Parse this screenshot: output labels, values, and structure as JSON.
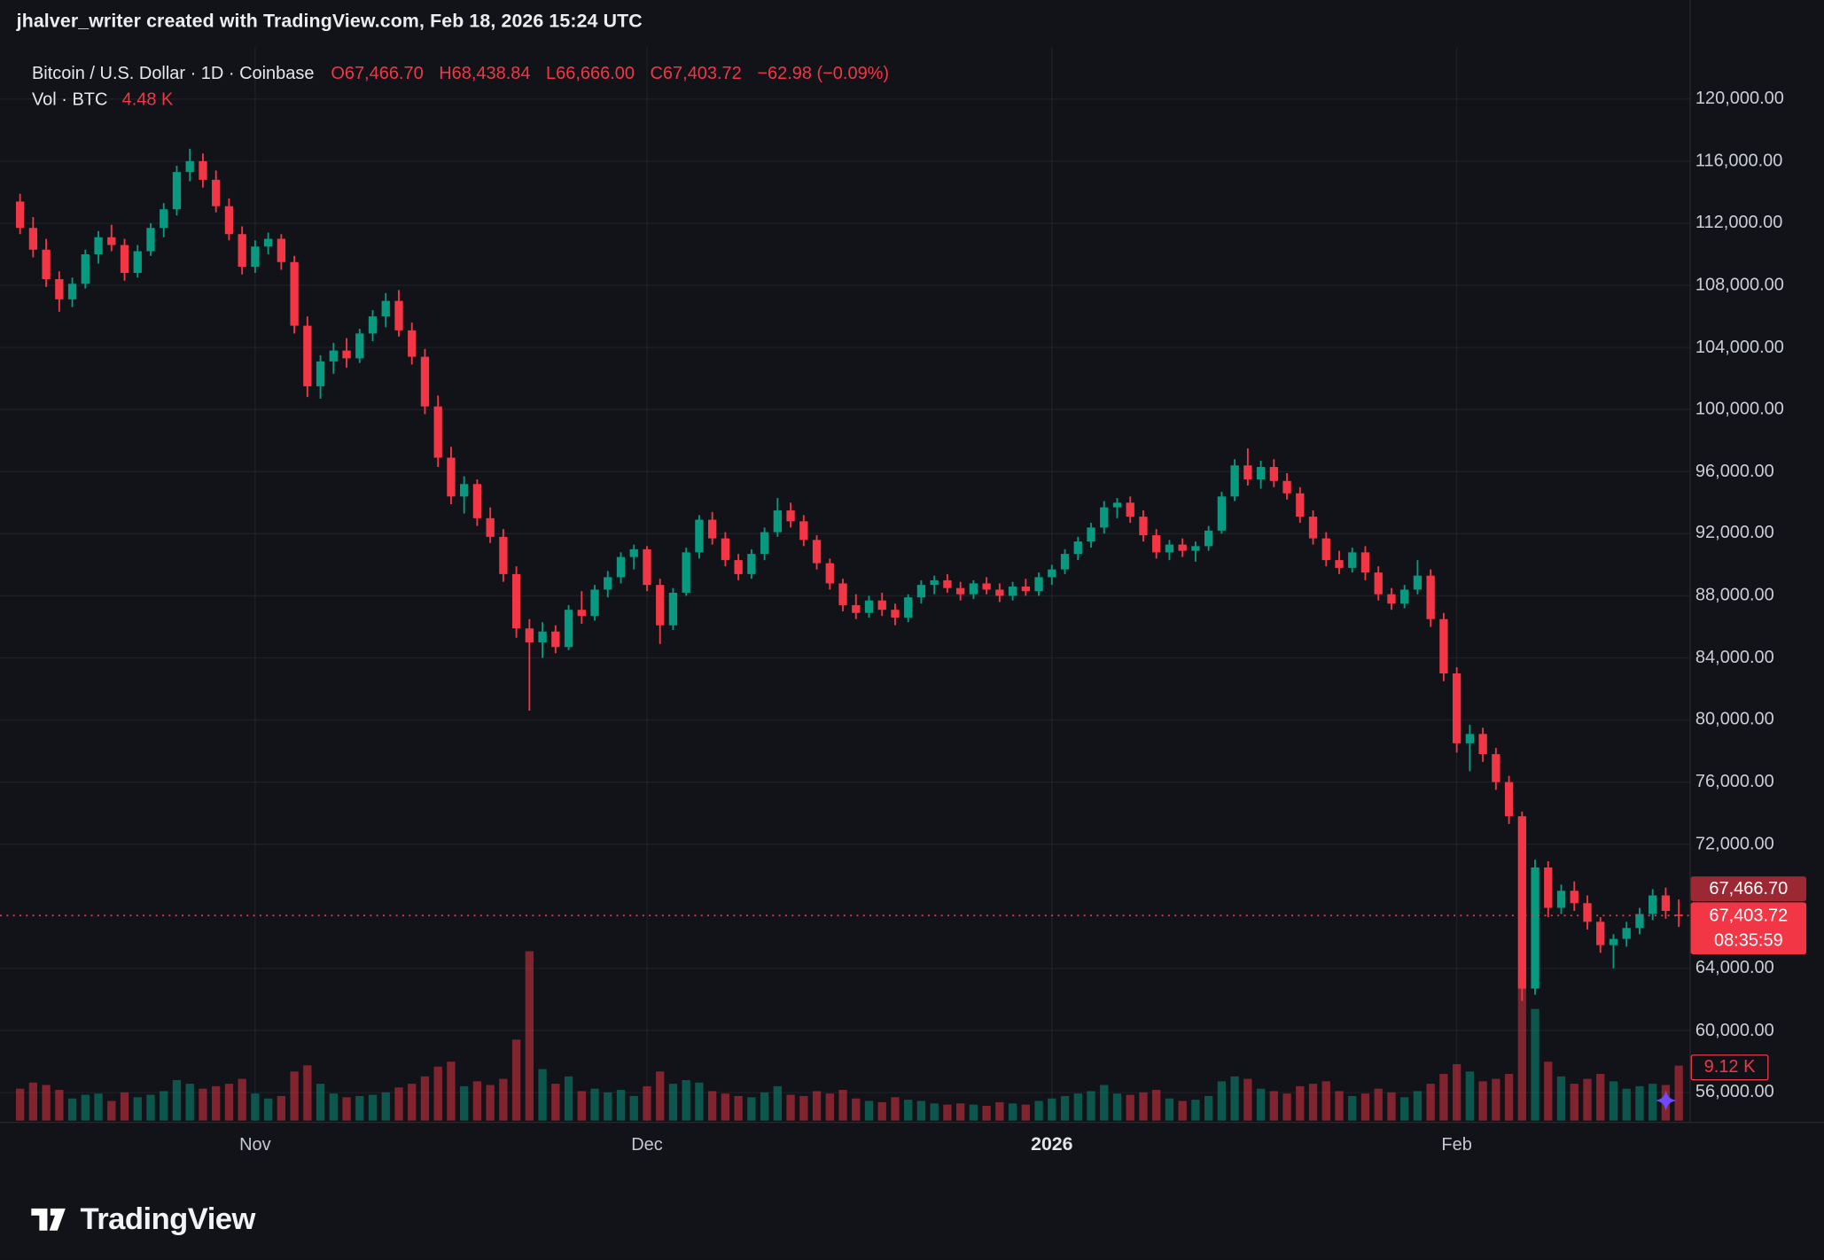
{
  "attribution": {
    "text": "jhalver_writer created with TradingView.com, Feb 18, 2026 15:24 UTC"
  },
  "legend": {
    "instrument": "Bitcoin / U.S. Dollar · 1D · Coinbase",
    "open": "O67,466.70",
    "high": "H68,438.84",
    "low": "L66,666.00",
    "close": "C67,403.72",
    "change": "−62.98 (−0.09%)",
    "volume_label": "Vol · BTC",
    "volume_value": "4.48 K"
  },
  "price_scale": {
    "open_label": "67,466.70",
    "close_label": "67,403.72",
    "countdown": "08:35:59",
    "volume_tag": "9.12 K"
  },
  "footer": {
    "brand": "TradingView"
  },
  "colors": {
    "up": "#089981",
    "down": "#f23645",
    "volume_up": "rgba(8,153,129,0.5)",
    "volume_down": "rgba(242,54,69,0.5)",
    "price_line": "#f23645",
    "grid": "rgba(255,255,255,0.055)",
    "marker": "#6e4bfa"
  },
  "chart_data": {
    "type": "candlestick",
    "title": "Bitcoin / U.S. Dollar · 1D · Coinbase",
    "interval": "1D",
    "legend_last": {
      "open": 67466.7,
      "high": 68438.84,
      "low": 66666.0,
      "close": 67403.72,
      "change": -62.98,
      "change_pct": -0.09,
      "volume_btc_k": 4.48
    },
    "current_price": 67403.72,
    "y_axis": {
      "min": 56000,
      "max": 120000,
      "tick_step": 4000,
      "ticks": [
        {
          "value": 120000,
          "label": "120,000.00"
        },
        {
          "value": 116000,
          "label": "116,000.00"
        },
        {
          "value": 112000,
          "label": "112,000.00"
        },
        {
          "value": 108000,
          "label": "108,000.00"
        },
        {
          "value": 104000,
          "label": "104,000.00"
        },
        {
          "value": 100000,
          "label": "100,000.00"
        },
        {
          "value": 96000,
          "label": "96,000.00"
        },
        {
          "value": 92000,
          "label": "92,000.00"
        },
        {
          "value": 88000,
          "label": "88,000.00"
        },
        {
          "value": 84000,
          "label": "84,000.00"
        },
        {
          "value": 80000,
          "label": "80,000.00"
        },
        {
          "value": 76000,
          "label": "76,000.00"
        },
        {
          "value": 72000,
          "label": "72,000.00"
        },
        {
          "value": 64000,
          "label": "64,000.00"
        },
        {
          "value": 60000,
          "label": "60,000.00"
        },
        {
          "value": 56000,
          "label": "56,000.00"
        }
      ]
    },
    "x_axis": {
      "labels": [
        {
          "text": "Nov",
          "day": 18,
          "bold": false
        },
        {
          "text": "Dec",
          "day": 48,
          "bold": false
        },
        {
          "text": "2026",
          "day": 79,
          "bold": true
        },
        {
          "text": "Feb",
          "day": 110,
          "bold": false
        }
      ]
    },
    "candles_format": [
      "open",
      "high",
      "low",
      "close",
      "volume_k"
    ],
    "candles": [
      [
        113400,
        113900,
        111300,
        111700,
        2.6
      ],
      [
        111700,
        112400,
        109800,
        110300,
        3.1
      ],
      [
        110300,
        111000,
        107900,
        108400,
        2.9
      ],
      [
        108400,
        108900,
        106300,
        107100,
        2.5
      ],
      [
        107100,
        108500,
        106600,
        108100,
        1.8
      ],
      [
        108100,
        110300,
        107800,
        110000,
        2.1
      ],
      [
        110000,
        111500,
        109400,
        111100,
        2.2
      ],
      [
        111100,
        111900,
        110200,
        110600,
        1.6
      ],
      [
        110600,
        111000,
        108300,
        108800,
        2.3
      ],
      [
        108800,
        110600,
        108500,
        110200,
        1.9
      ],
      [
        110200,
        112000,
        109900,
        111700,
        2.1
      ],
      [
        111700,
        113300,
        111100,
        112900,
        2.4
      ],
      [
        112900,
        115700,
        112500,
        115300,
        3.3
      ],
      [
        115300,
        116800,
        114700,
        116000,
        3.0
      ],
      [
        116000,
        116500,
        114300,
        114800,
        2.6
      ],
      [
        114800,
        115400,
        112700,
        113100,
        2.8
      ],
      [
        113100,
        113600,
        110900,
        111300,
        3.0
      ],
      [
        111300,
        111800,
        108700,
        109200,
        3.4
      ],
      [
        109200,
        110900,
        108800,
        110500,
        2.2
      ],
      [
        110500,
        111400,
        110000,
        111000,
        1.8
      ],
      [
        111000,
        111300,
        109000,
        109500,
        2.0
      ],
      [
        109500,
        109900,
        104900,
        105400,
        4.0
      ],
      [
        105400,
        106000,
        100800,
        101500,
        4.5
      ],
      [
        101500,
        103500,
        100700,
        103100,
        3.0
      ],
      [
        103100,
        104300,
        102300,
        103800,
        2.2
      ],
      [
        103800,
        104600,
        102700,
        103300,
        1.9
      ],
      [
        103300,
        105200,
        103000,
        104900,
        2.0
      ],
      [
        104900,
        106400,
        104400,
        106000,
        2.1
      ],
      [
        106000,
        107500,
        105300,
        107000,
        2.3
      ],
      [
        107000,
        107700,
        104700,
        105100,
        2.7
      ],
      [
        105100,
        105600,
        102900,
        103400,
        3.0
      ],
      [
        103400,
        103900,
        99700,
        100200,
        3.6
      ],
      [
        100200,
        100900,
        96300,
        96900,
        4.4
      ],
      [
        96900,
        97600,
        93900,
        94400,
        4.8
      ],
      [
        94400,
        95700,
        93300,
        95200,
        2.8
      ],
      [
        95200,
        95500,
        92500,
        93000,
        3.2
      ],
      [
        93000,
        93700,
        91400,
        91800,
        2.9
      ],
      [
        91800,
        92300,
        88900,
        89400,
        3.4
      ],
      [
        89400,
        89900,
        85300,
        85900,
        6.6
      ],
      [
        85900,
        86500,
        80600,
        85000,
        13.8
      ],
      [
        85000,
        86300,
        84000,
        85700,
        4.2
      ],
      [
        85700,
        86100,
        84300,
        84700,
        3.0
      ],
      [
        84700,
        87400,
        84500,
        87100,
        3.6
      ],
      [
        87100,
        88300,
        86200,
        86700,
        2.4
      ],
      [
        86700,
        88700,
        86400,
        88400,
        2.6
      ],
      [
        88400,
        89600,
        87900,
        89200,
        2.3
      ],
      [
        89200,
        90800,
        88800,
        90500,
        2.5
      ],
      [
        90500,
        91300,
        89700,
        91000,
        2.0
      ],
      [
        91000,
        91200,
        88300,
        88700,
        2.8
      ],
      [
        88700,
        89100,
        84900,
        86100,
        4.0
      ],
      [
        86100,
        88500,
        85800,
        88200,
        3.0
      ],
      [
        88200,
        91100,
        88000,
        90800,
        3.3
      ],
      [
        90800,
        93200,
        90400,
        92900,
        3.1
      ],
      [
        92900,
        93400,
        91300,
        91700,
        2.4
      ],
      [
        91700,
        92100,
        89900,
        90300,
        2.2
      ],
      [
        90300,
        90700,
        89000,
        89400,
        2.0
      ],
      [
        89400,
        91000,
        89100,
        90700,
        1.9
      ],
      [
        90700,
        92400,
        90300,
        92100,
        2.3
      ],
      [
        92100,
        94300,
        91800,
        93500,
        2.8
      ],
      [
        93500,
        94000,
        92400,
        92800,
        2.1
      ],
      [
        92800,
        93200,
        91200,
        91600,
        2.0
      ],
      [
        91600,
        91900,
        89700,
        90100,
        2.4
      ],
      [
        90100,
        90400,
        88400,
        88800,
        2.2
      ],
      [
        88800,
        89100,
        87000,
        87400,
        2.5
      ],
      [
        87400,
        88100,
        86500,
        86900,
        1.8
      ],
      [
        86900,
        88000,
        86600,
        87700,
        1.6
      ],
      [
        87700,
        88200,
        86700,
        87100,
        1.5
      ],
      [
        87100,
        87500,
        86100,
        86600,
        1.9
      ],
      [
        86600,
        88100,
        86300,
        87900,
        1.7
      ],
      [
        87900,
        89000,
        87500,
        88700,
        1.6
      ],
      [
        88700,
        89300,
        88100,
        89000,
        1.4
      ],
      [
        89000,
        89400,
        88200,
        88500,
        1.3
      ],
      [
        88500,
        88900,
        87700,
        88100,
        1.4
      ],
      [
        88100,
        89000,
        87800,
        88800,
        1.3
      ],
      [
        88800,
        89200,
        88100,
        88400,
        1.2
      ],
      [
        88400,
        88800,
        87600,
        88000,
        1.5
      ],
      [
        88000,
        88900,
        87700,
        88600,
        1.4
      ],
      [
        88600,
        89100,
        88000,
        88300,
        1.3
      ],
      [
        88300,
        89500,
        88000,
        89200,
        1.6
      ],
      [
        89200,
        90000,
        88700,
        89700,
        1.8
      ],
      [
        89700,
        91000,
        89400,
        90700,
        2.0
      ],
      [
        90700,
        91800,
        90300,
        91500,
        2.2
      ],
      [
        91500,
        92700,
        91100,
        92400,
        2.4
      ],
      [
        92400,
        94100,
        92000,
        93700,
        2.9
      ],
      [
        93700,
        94300,
        93000,
        94000,
        2.2
      ],
      [
        94000,
        94400,
        92700,
        93100,
        2.1
      ],
      [
        93100,
        93500,
        91500,
        91900,
        2.3
      ],
      [
        91900,
        92300,
        90400,
        90800,
        2.5
      ],
      [
        90800,
        91600,
        90300,
        91300,
        1.8
      ],
      [
        91300,
        91700,
        90500,
        90900,
        1.6
      ],
      [
        90900,
        91500,
        90200,
        91200,
        1.7
      ],
      [
        91200,
        92500,
        90900,
        92200,
        2.0
      ],
      [
        92200,
        94700,
        92000,
        94400,
        3.2
      ],
      [
        94400,
        96800,
        94100,
        96400,
        3.6
      ],
      [
        96400,
        97500,
        95100,
        95500,
        3.4
      ],
      [
        95500,
        96700,
        94900,
        96300,
        2.6
      ],
      [
        96300,
        96800,
        95000,
        95400,
        2.4
      ],
      [
        95400,
        95900,
        94200,
        94600,
        2.2
      ],
      [
        94600,
        95000,
        92700,
        93100,
        2.8
      ],
      [
        93100,
        93500,
        91300,
        91700,
        3.0
      ],
      [
        91700,
        92100,
        89900,
        90300,
        3.2
      ],
      [
        90300,
        90900,
        89400,
        89800,
        2.4
      ],
      [
        89800,
        91100,
        89500,
        90800,
        2.0
      ],
      [
        90800,
        91200,
        89000,
        89500,
        2.2
      ],
      [
        89500,
        89900,
        87700,
        88100,
        2.6
      ],
      [
        88100,
        88500,
        87100,
        87500,
        2.3
      ],
      [
        87500,
        88700,
        87200,
        88400,
        1.9
      ],
      [
        88400,
        90300,
        88100,
        89300,
        2.4
      ],
      [
        89300,
        89700,
        86000,
        86500,
        3.0
      ],
      [
        86500,
        86900,
        82500,
        83000,
        3.8
      ],
      [
        83000,
        83400,
        77900,
        78500,
        4.6
      ],
      [
        78500,
        79700,
        76700,
        79100,
        4.0
      ],
      [
        79100,
        79500,
        77300,
        77800,
        3.2
      ],
      [
        77800,
        78200,
        75500,
        76000,
        3.4
      ],
      [
        76000,
        76400,
        73300,
        73800,
        3.8
      ],
      [
        73800,
        74100,
        61900,
        62700,
        10.8
      ],
      [
        62700,
        71000,
        62300,
        70500,
        9.1
      ],
      [
        70500,
        70900,
        67300,
        67900,
        4.8
      ],
      [
        67900,
        69400,
        67500,
        69000,
        3.6
      ],
      [
        69000,
        69600,
        67700,
        68200,
        3.0
      ],
      [
        68200,
        68700,
        66500,
        67000,
        3.4
      ],
      [
        67000,
        67300,
        65000,
        65500,
        3.8
      ],
      [
        65500,
        66200,
        64000,
        65900,
        3.2
      ],
      [
        65900,
        67000,
        65400,
        66600,
        2.6
      ],
      [
        66600,
        67900,
        66200,
        67500,
        2.8
      ],
      [
        67500,
        69100,
        67100,
        68700,
        3.0
      ],
      [
        68700,
        69200,
        67200,
        67700,
        2.9
      ],
      [
        67466.7,
        68438.84,
        66666.0,
        67403.72,
        4.48
      ]
    ]
  }
}
